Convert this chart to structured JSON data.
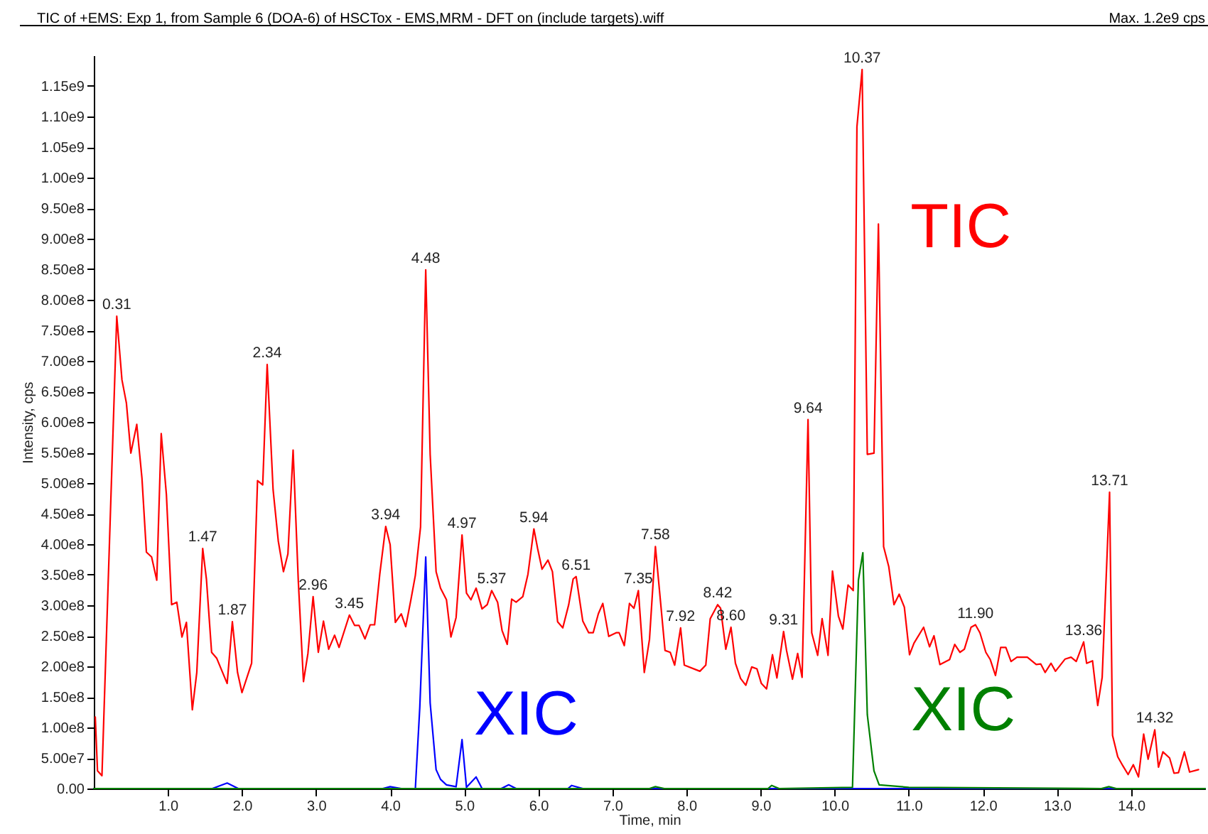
{
  "chart_data": {
    "type": "line",
    "title": "TIC of +EMS: Exp 1, from Sample 6 (DOA-6) of HSCTox - EMS,MRM - DFT on (include targets).wiff",
    "xlabel": "Time, min",
    "ylabel": "Intensity, cps",
    "xlim": [
      0,
      15.0
    ],
    "ylim": [
      0,
      1200000000.0
    ],
    "xticks": [
      {
        "value": 1,
        "label": "1.0"
      },
      {
        "value": 2,
        "label": "2.0"
      },
      {
        "value": 3,
        "label": "3.0"
      },
      {
        "value": 4,
        "label": "4.0"
      },
      {
        "value": 5,
        "label": "5.0"
      },
      {
        "value": 6,
        "label": "6.0"
      },
      {
        "value": 7,
        "label": "7.0"
      },
      {
        "value": 8,
        "label": "8.0"
      },
      {
        "value": 9,
        "label": "9.0"
      },
      {
        "value": 10,
        "label": "10.0"
      },
      {
        "value": 11,
        "label": "11.0"
      },
      {
        "value": 12,
        "label": "12.0"
      },
      {
        "value": 13,
        "label": "13.0"
      },
      {
        "value": 14,
        "label": "14.0"
      }
    ],
    "yticks": [
      {
        "value": 0,
        "label": "0.00"
      },
      {
        "value": 50000000.0,
        "label": "5.00e7"
      },
      {
        "value": 100000000.0,
        "label": "1.00e8"
      },
      {
        "value": 150000000.0,
        "label": "1.50e8"
      },
      {
        "value": 200000000.0,
        "label": "2.00e8"
      },
      {
        "value": 250000000.0,
        "label": "2.50e8"
      },
      {
        "value": 300000000.0,
        "label": "3.00e8"
      },
      {
        "value": 350000000.0,
        "label": "3.50e8"
      },
      {
        "value": 400000000.0,
        "label": "4.00e8"
      },
      {
        "value": 450000000.0,
        "label": "4.50e8"
      },
      {
        "value": 500000000.0,
        "label": "5.00e8"
      },
      {
        "value": 550000000.0,
        "label": "5.50e8"
      },
      {
        "value": 600000000.0,
        "label": "6.00e8"
      },
      {
        "value": 650000000.0,
        "label": "6.50e8"
      },
      {
        "value": 700000000.0,
        "label": "7.00e8"
      },
      {
        "value": 750000000.0,
        "label": "7.50e8"
      },
      {
        "value": 800000000.0,
        "label": "8.00e8"
      },
      {
        "value": 850000000.0,
        "label": "8.50e8"
      },
      {
        "value": 900000000.0,
        "label": "9.00e8"
      },
      {
        "value": 950000000.0,
        "label": "9.50e8"
      },
      {
        "value": 1000000000.0,
        "label": "1.00e9"
      },
      {
        "value": 1050000000.0,
        "label": "1.05e9"
      },
      {
        "value": 1100000000.0,
        "label": "1.10e9"
      },
      {
        "value": 1150000000.0,
        "label": "1.15e9"
      }
    ],
    "grid": false,
    "marker": "none",
    "line_style": "solid",
    "series": [
      {
        "name": "TIC",
        "color": "#ff0000",
        "x": [
          0.02,
          0.05,
          0.11,
          0.31,
          0.38,
          0.44,
          0.5,
          0.58,
          0.65,
          0.71,
          0.78,
          0.85,
          0.91,
          0.98,
          1.05,
          1.12,
          1.19,
          1.25,
          1.33,
          1.39,
          1.47,
          1.52,
          1.59,
          1.66,
          1.8,
          1.87,
          1.94,
          2.0,
          2.13,
          2.21,
          2.28,
          2.34,
          2.42,
          2.49,
          2.56,
          2.62,
          2.69,
          2.76,
          2.83,
          2.89,
          2.96,
          3.03,
          3.1,
          3.17,
          3.25,
          3.31,
          3.45,
          3.52,
          3.58,
          3.66,
          3.73,
          3.79,
          3.86,
          3.94,
          4.0,
          4.07,
          4.15,
          4.21,
          4.28,
          4.34,
          4.41,
          4.48,
          4.54,
          4.62,
          4.68,
          4.76,
          4.82,
          4.89,
          4.97,
          5.03,
          5.09,
          5.16,
          5.24,
          5.31,
          5.37,
          5.45,
          5.51,
          5.58,
          5.64,
          5.7,
          5.79,
          5.86,
          5.94,
          5.99,
          6.05,
          6.13,
          6.19,
          6.26,
          6.33,
          6.41,
          6.47,
          6.51,
          6.6,
          6.68,
          6.74,
          6.81,
          6.87,
          6.95,
          7.05,
          7.09,
          7.16,
          7.23,
          7.29,
          7.35,
          7.43,
          7.5,
          7.58,
          7.71,
          7.78,
          7.84,
          7.92,
          7.97,
          8.18,
          8.26,
          8.32,
          8.42,
          8.46,
          8.53,
          8.6,
          8.66,
          8.73,
          8.8,
          8.88,
          8.95,
          9.01,
          9.08,
          9.16,
          9.22,
          9.31,
          9.35,
          9.43,
          9.5,
          9.56,
          9.64,
          9.69,
          9.77,
          9.83,
          9.91,
          9.97,
          10.05,
          10.11,
          10.18,
          10.25,
          10.3,
          10.37,
          10.44,
          10.53,
          10.59,
          10.66,
          10.73,
          10.8,
          10.87,
          10.94,
          11.01,
          11.07,
          11.2,
          11.28,
          11.34,
          11.42,
          11.55,
          11.62,
          11.69,
          11.75,
          11.84,
          11.9,
          11.96,
          12.04,
          12.1,
          12.17,
          12.24,
          12.31,
          12.38,
          12.46,
          12.6,
          12.72,
          12.78,
          12.84,
          12.92,
          12.98,
          13.11,
          13.19,
          13.26,
          13.36,
          13.4,
          13.48,
          13.55,
          13.61,
          13.71,
          13.75,
          13.82,
          13.89,
          13.96,
          14.03,
          14.1,
          14.17,
          14.23,
          14.32,
          14.37,
          14.43,
          14.52,
          14.58,
          14.64,
          14.72,
          14.79,
          14.91
        ],
        "values": [
          117000000.0,
          29000000.0,
          21000000.0,
          773000000.0,
          669000000.0,
          631000000.0,
          549000000.0,
          596000000.0,
          508000000.0,
          387000000.0,
          379000000.0,
          341000000.0,
          581000000.0,
          481000000.0,
          301000000.0,
          305000000.0,
          248000000.0,
          272000000.0,
          129000000.0,
          190000000.0,
          393000000.0,
          343000000.0,
          223000000.0,
          213000000.0,
          172000000.0,
          273000000.0,
          190000000.0,
          157000000.0,
          205000000.0,
          504000000.0,
          497000000.0,
          694000000.0,
          489000000.0,
          405000000.0,
          355000000.0,
          384000000.0,
          554000000.0,
          340000000.0,
          175000000.0,
          221000000.0,
          314000000.0,
          223000000.0,
          274000000.0,
          228000000.0,
          251000000.0,
          231000000.0,
          284000000.0,
          267000000.0,
          267000000.0,
          245000000.0,
          268000000.0,
          268000000.0,
          351000000.0,
          429000000.0,
          399000000.0,
          272000000.0,
          286000000.0,
          265000000.0,
          309000000.0,
          349000000.0,
          428000000.0,
          849000000.0,
          547000000.0,
          355000000.0,
          328000000.0,
          309000000.0,
          248000000.0,
          280000000.0,
          415000000.0,
          320000000.0,
          309000000.0,
          328000000.0,
          294000000.0,
          301000000.0,
          324000000.0,
          305000000.0,
          259000000.0,
          236000000.0,
          310000000.0,
          305000000.0,
          314000000.0,
          351000000.0,
          425000000.0,
          393000000.0,
          359000000.0,
          374000000.0,
          355000000.0,
          273000000.0,
          263000000.0,
          301000000.0,
          343000000.0,
          347000000.0,
          274000000.0,
          255000000.0,
          255000000.0,
          286000000.0,
          303000000.0,
          249000000.0,
          255000000.0,
          255000000.0,
          234000000.0,
          303000000.0,
          295000000.0,
          324000000.0,
          190000000.0,
          244000000.0,
          396000000.0,
          226000000.0,
          223000000.0,
          202000000.0,
          263000000.0,
          202000000.0,
          192000000.0,
          202000000.0,
          278000000.0,
          301000000.0,
          295000000.0,
          228000000.0,
          264000000.0,
          205000000.0,
          180000000.0,
          169000000.0,
          199000000.0,
          196000000.0,
          172000000.0,
          163000000.0,
          219000000.0,
          181000000.0,
          257000000.0,
          226000000.0,
          179000000.0,
          221000000.0,
          182000000.0,
          604000000.0,
          255000000.0,
          218000000.0,
          278000000.0,
          218000000.0,
          356000000.0,
          282000000.0,
          261000000.0,
          333000000.0,
          324000000.0,
          1083000000.0,
          1177000000.0,
          547000000.0,
          549000000.0,
          924000000.0,
          396000000.0,
          363000000.0,
          301000000.0,
          318000000.0,
          297000000.0,
          219000000.0,
          238000000.0,
          264000000.0,
          232000000.0,
          250000000.0,
          203000000.0,
          211000000.0,
          236000000.0,
          223000000.0,
          228000000.0,
          264000000.0,
          268000000.0,
          255000000.0,
          223000000.0,
          211000000.0,
          185000000.0,
          231000000.0,
          231000000.0,
          208000000.0,
          215000000.0,
          215000000.0,
          203000000.0,
          204000000.0,
          190000000.0,
          205000000.0,
          192000000.0,
          212000000.0,
          215000000.0,
          208000000.0,
          240000000.0,
          205000000.0,
          209000000.0,
          136000000.0,
          182000000.0,
          485000000.0,
          87000000.0,
          52000000.0,
          37000000.0,
          23000000.0,
          39000000.0,
          19000000.0,
          89000000.0,
          48000000.0,
          96000000.0,
          35000000.0,
          60000000.0,
          50000000.0,
          25000000.0,
          26000000.0,
          60000000.0,
          27000000.0,
          31000000.0
        ]
      },
      {
        "name": "XIC",
        "color": "#0000ff",
        "x": [
          0.0,
          1.6,
          1.8,
          1.95,
          3.9,
          4.0,
          4.15,
          4.34,
          4.4,
          4.48,
          4.54,
          4.62,
          4.68,
          4.76,
          4.89,
          4.97,
          5.03,
          5.16,
          5.24,
          5.5,
          5.6,
          5.7,
          6.4,
          6.45,
          6.6,
          15.0
        ],
        "values": [
          0,
          0,
          9000000.0,
          0,
          0,
          3000000.0,
          0,
          0,
          133000000.0,
          379000000.0,
          140000000.0,
          31000000.0,
          15000000.0,
          6000000.0,
          3000000.0,
          80000000.0,
          2000000.0,
          19000000.0,
          0,
          0,
          6000000.0,
          0,
          0,
          5000000.0,
          0,
          0
        ]
      },
      {
        "name": "XIC",
        "color": "#008000",
        "x": [
          0.0,
          7.5,
          7.58,
          7.7,
          9.1,
          9.15,
          9.25,
          10.24,
          10.32,
          10.38,
          10.44,
          10.53,
          10.6,
          11.0,
          13.6,
          13.7,
          13.8,
          15.0
        ],
        "values": [
          0,
          0,
          3000000.0,
          0,
          0,
          5000000.0,
          0,
          2000000.0,
          341000000.0,
          386000000.0,
          121000000.0,
          29000000.0,
          6000000.0,
          2000000.0,
          0,
          3000000.0,
          0,
          0
        ]
      }
    ],
    "annotations": [
      "Max. 1.2e9 cps",
      {
        "text": "0.31",
        "x": 0.31,
        "y": 773000000.0
      },
      {
        "text": "1.47",
        "x": 1.47,
        "y": 393000000.0
      },
      {
        "text": "1.87",
        "x": 1.87,
        "y": 273000000.0
      },
      {
        "text": "2.34",
        "x": 2.34,
        "y": 694000000.0
      },
      {
        "text": "2.96",
        "x": 2.96,
        "y": 314000000.0
      },
      {
        "text": "3.45",
        "x": 3.45,
        "y": 284000000.0
      },
      {
        "text": "3.94",
        "x": 3.94,
        "y": 429000000.0
      },
      {
        "text": "4.48",
        "x": 4.48,
        "y": 849000000.0
      },
      {
        "text": "4.97",
        "x": 4.97,
        "y": 415000000.0
      },
      {
        "text": "5.37",
        "x": 5.37,
        "y": 324000000.0
      },
      {
        "text": "5.94",
        "x": 5.94,
        "y": 425000000.0
      },
      {
        "text": "6.51",
        "x": 6.51,
        "y": 347000000.0
      },
      {
        "text": "7.35",
        "x": 7.35,
        "y": 324000000.0
      },
      {
        "text": "7.58",
        "x": 7.58,
        "y": 396000000.0
      },
      {
        "text": "7.92",
        "x": 7.92,
        "y": 263000000.0
      },
      {
        "text": "8.42",
        "x": 8.42,
        "y": 301000000.0
      },
      {
        "text": "8.60",
        "x": 8.6,
        "y": 264000000.0
      },
      {
        "text": "9.31",
        "x": 9.31,
        "y": 257000000.0
      },
      {
        "text": "9.64",
        "x": 9.64,
        "y": 604000000.0
      },
      {
        "text": "10.37",
        "x": 10.37,
        "y": 1177000000.0
      },
      {
        "text": "11.90",
        "x": 11.9,
        "y": 268000000.0
      },
      {
        "text": "13.36",
        "x": 13.36,
        "y": 240000000.0
      },
      {
        "text": "13.71",
        "x": 13.71,
        "y": 485000000.0
      },
      {
        "text": "14.32",
        "x": 14.32,
        "y": 96000000.0
      }
    ]
  }
}
